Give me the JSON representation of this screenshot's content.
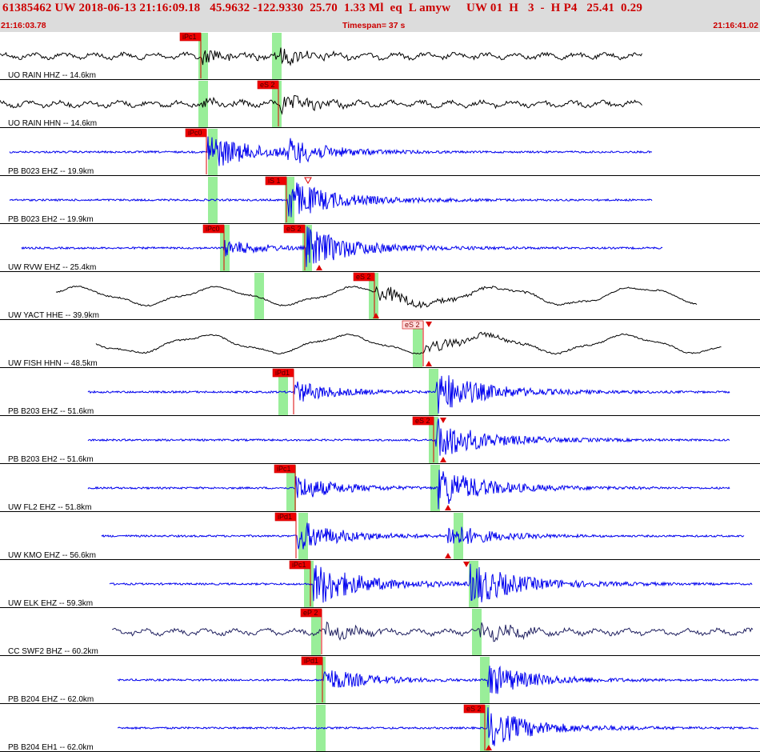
{
  "header": {
    "event_line": "61385462 UW 2018-06-13 21:16:09.18   45.9632 -122.9330  25.70  1.33 Ml  eq  L amyw     UW 01  H   3  -  H P4   25.41  0.29",
    "start_time": "21:16:03.78",
    "timespan": "Timespan=  37 s",
    "end_time": "21:16:41.02"
  },
  "colors": {
    "header_text": "#cc0000",
    "pick_box": "#ee0000",
    "window": "#99ee99",
    "trace_black": "#000000",
    "trace_blue": "#0000ee",
    "trace_navy": "#202060"
  },
  "panels": [
    {
      "label": "UO RAIN HHZ -- 14.6km",
      "color": "trace_black",
      "style": "seismic",
      "picks": [
        {
          "label": "iPc1",
          "pos": "box-left"
        }
      ],
      "windows": [],
      "markers": []
    },
    {
      "label": "UO RAIN HHN -- 14.6km",
      "color": "trace_black",
      "style": "seismic",
      "picks": [
        {
          "label": "eS 2",
          "pos": "box-left"
        }
      ],
      "windows": [],
      "markers": []
    },
    {
      "label": "PB B023 EHZ -- 19.9km",
      "color": "trace_blue",
      "style": "high",
      "picks": [
        {
          "label": "iPc0",
          "pos": "box-left"
        }
      ],
      "windows": [],
      "markers": []
    },
    {
      "label": "PB B023 EH2 -- 19.9km",
      "color": "trace_blue",
      "style": "high",
      "picks": [
        {
          "label": "iS 1",
          "pos": "box-left"
        }
      ],
      "windows": [],
      "markers": []
    },
    {
      "label": "UW RVW EHZ -- 25.4km",
      "color": "trace_blue",
      "style": "high",
      "picks": [
        {
          "label": "iPc0",
          "pos": "box-left"
        },
        {
          "label": "eS 2",
          "pos": "box-left"
        }
      ],
      "windows": [],
      "markers": []
    },
    {
      "label": "UW YACT HHE -- 39.9km",
      "color": "trace_black",
      "style": "lowfreq",
      "picks": [
        {
          "label": "eS 2",
          "pos": "box-left"
        }
      ],
      "windows": [],
      "markers": []
    },
    {
      "label": "UW FISH HHN -- 48.5km",
      "color": "trace_black",
      "style": "lowfreq",
      "picks": [
        {
          "label": "eS 2",
          "pos": "box-left",
          "light": true
        }
      ],
      "windows": [],
      "markers": []
    },
    {
      "label": "PB B203 EHZ -- 51.6km",
      "color": "trace_blue",
      "style": "high",
      "picks": [
        {
          "label": "iPd1",
          "pos": "box-left"
        }
      ],
      "windows": [],
      "markers": []
    },
    {
      "label": "PB B203 EH2 -- 51.6km",
      "color": "trace_blue",
      "style": "high",
      "picks": [
        {
          "label": "eS 2",
          "pos": "box-left"
        }
      ],
      "windows": [],
      "markers": []
    },
    {
      "label": "UW FL2 EHZ -- 51.8km",
      "color": "trace_blue",
      "style": "high",
      "picks": [
        {
          "label": "iPc1",
          "pos": "box-left"
        }
      ],
      "windows": [],
      "markers": []
    },
    {
      "label": "UW KMO EHZ -- 56.6km",
      "color": "trace_blue",
      "style": "high",
      "picks": [
        {
          "label": "iPd1",
          "pos": "box-left"
        }
      ],
      "windows": [],
      "markers": []
    },
    {
      "label": "UW ELK EHZ -- 59.3km",
      "color": "trace_blue",
      "style": "high",
      "picks": [
        {
          "label": "iPc1",
          "pos": "box-left"
        }
      ],
      "windows": [],
      "markers": []
    },
    {
      "label": "CC SWF2 BHZ -- 60.2km",
      "color": "trace_navy",
      "style": "seismic",
      "picks": [
        {
          "label": "eP 2",
          "pos": "box-left"
        }
      ],
      "windows": [],
      "markers": []
    },
    {
      "label": "PB B204 EHZ -- 62.0km",
      "color": "trace_blue",
      "style": "high",
      "picks": [
        {
          "label": "iPd1",
          "pos": "box-left"
        }
      ],
      "windows": [],
      "markers": []
    },
    {
      "label": "PB B204 EH1 -- 62.0km",
      "color": "trace_blue",
      "style": "high",
      "picks": [
        {
          "label": "eS 2",
          "pos": "box-left"
        }
      ],
      "windows": [],
      "markers": []
    }
  ]
}
